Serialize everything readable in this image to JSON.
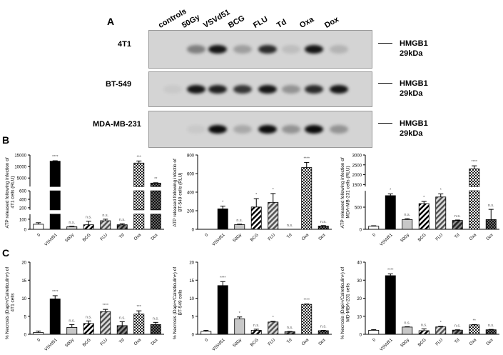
{
  "panels": {
    "a": "A",
    "b": "B",
    "c": "C"
  },
  "blot": {
    "lanes": [
      "controls",
      "50Gy",
      "VSVd51",
      "BCG",
      "FLU",
      "Td",
      "Oxa",
      "Dox"
    ],
    "rows": [
      {
        "label": "4T1",
        "marker": "HMGB1",
        "size": "29kDa",
        "band_intensity": [
          0,
          0.4,
          0.9,
          0.25,
          0.8,
          0.1,
          0.9,
          0.15
        ]
      },
      {
        "label": "BT-549",
        "marker": "HMGB1",
        "size": "29kDa",
        "band_intensity": [
          0.05,
          0.9,
          0.85,
          0.75,
          0.9,
          0.3,
          0.8,
          0.9
        ]
      },
      {
        "label": "MDA-MB-231",
        "marker": "HMGB1",
        "size": "29kDa",
        "band_intensity": [
          0,
          0.05,
          0.95,
          0.2,
          0.95,
          0.3,
          0.95,
          0.3
        ]
      }
    ]
  },
  "chart_data": [
    {
      "type": "bar",
      "ylabel": "ATP released following infection of 4T1 cells (RLU)",
      "categories": [
        "0",
        "VSVd51",
        "50Gy",
        "BCG",
        "FLU",
        "Td",
        "Oxa",
        "Dox"
      ],
      "values": [
        50,
        12300,
        25,
        45,
        85,
        45,
        11500,
        2800
      ],
      "errors": [
        15,
        200,
        5,
        35,
        15,
        10,
        900,
        150
      ],
      "significance": [
        "",
        "****",
        "n.s.",
        "n.s.",
        "n.s.",
        "n.s.",
        "***",
        "**"
      ],
      "y_segments": [
        [
          0,
          150
        ],
        [
          150,
          600
        ],
        [
          1300,
          15000
        ]
      ],
      "yticks": [
        0,
        100,
        200,
        400,
        600,
        5000,
        10000,
        15000
      ]
    },
    {
      "type": "bar",
      "ylabel": "ATP released following infectio of BT-549 cells (RLU)",
      "categories": [
        "0",
        "VSVd51",
        "50Gy",
        "BCG",
        "FLU",
        "Td",
        "Oxa",
        "Dox"
      ],
      "values": [
        0,
        220,
        50,
        240,
        290,
        0,
        665,
        35
      ],
      "errors": [
        0,
        30,
        5,
        90,
        95,
        0,
        55,
        5
      ],
      "significance": [
        "",
        "*",
        "n.s.",
        "*",
        "*",
        "n.s.",
        "****",
        "n.s."
      ],
      "y_segments": [
        [
          0,
          800
        ]
      ],
      "yticks": [
        0,
        200,
        400,
        600,
        800
      ]
    },
    {
      "type": "bar",
      "ylabel": "ATP released following infection of MDA-MB-231 cells (RLU)",
      "categories": [
        "0",
        "VSVd51",
        "50Gy",
        "BCG",
        "FLU",
        "Td",
        "Oxa",
        "Dox"
      ],
      "values": [
        70,
        760,
        220,
        580,
        730,
        200,
        2300,
        220
      ],
      "errors": [
        10,
        40,
        20,
        50,
        70,
        10,
        150,
        230
      ],
      "significance": [
        "",
        "*",
        "n.s.",
        "*",
        "*",
        "n.s.",
        "****",
        "n.s."
      ],
      "y_segments": [
        [
          0,
          870
        ],
        [
          1400,
          3000
        ]
      ],
      "yticks": [
        0,
        500,
        1500,
        2000,
        2500,
        3000
      ]
    },
    {
      "type": "bar",
      "ylabel": "% Necrosis (Dapi+/Calreticulin+) of 4T1 cells",
      "categories": [
        "0",
        "VSVd51",
        "50Gy",
        "BCG",
        "FLU",
        "Td",
        "Oxa",
        "Dox"
      ],
      "values": [
        0.5,
        9.8,
        1.9,
        3.0,
        6.3,
        2.4,
        5.6,
        2.7
      ],
      "errors": [
        0.4,
        0.9,
        0.8,
        0.7,
        0.6,
        1.1,
        0.9,
        0.6
      ],
      "significance": [
        "",
        "****",
        "n.s.",
        "n.s.",
        "****",
        "n.s.",
        "***",
        "n.s."
      ],
      "y_segments": [
        [
          0,
          20
        ]
      ],
      "yticks": [
        0,
        5,
        10,
        15,
        20
      ]
    },
    {
      "type": "bar",
      "ylabel": "% Necrosis (Dapi+/Calreticulin+) of BT-549 cells",
      "categories": [
        "0",
        "VSVd51",
        "50Gy",
        "BCG",
        "FLU",
        "Td",
        "Oxa",
        "Dox"
      ],
      "values": [
        0.8,
        13.5,
        4.3,
        1.1,
        3.4,
        0.7,
        8.3,
        1.0
      ],
      "errors": [
        0.3,
        1.1,
        0.5,
        0.3,
        0.2,
        0.1,
        0.1,
        0.1
      ],
      "significance": [
        "",
        "****",
        "*",
        "n.s.",
        "*",
        "n.s.",
        "****",
        "n.s."
      ],
      "y_segments": [
        [
          0,
          20
        ]
      ],
      "yticks": [
        0,
        5,
        10,
        15,
        20
      ]
    },
    {
      "type": "bar",
      "ylabel": "% Necrosis (Dapi+/Calreticulin+) of MD-MBA-231 cells",
      "categories": [
        "0",
        "VSVd51",
        "50Gy",
        "BCG",
        "FLU",
        "Td",
        "Oxa",
        "Dox"
      ],
      "values": [
        2.2,
        32.5,
        4.0,
        2.0,
        4.1,
        2.3,
        5.2,
        2.5
      ],
      "errors": [
        0.4,
        1.0,
        0.2,
        1.0,
        0.3,
        0.2,
        0.2,
        0.2
      ],
      "significance": [
        "",
        "****",
        "n.s.",
        "n.s.",
        "*",
        "n.s.",
        "**",
        "n.s."
      ],
      "y_segments": [
        [
          0,
          40
        ]
      ],
      "yticks": [
        0,
        10,
        20,
        30,
        40
      ]
    }
  ],
  "bar_fills": [
    "#ffffff",
    "#000000",
    "#c8c8c8",
    "stripe-bw",
    "stripe-gray",
    "stripe-dark",
    "checker",
    "checker-dark"
  ]
}
